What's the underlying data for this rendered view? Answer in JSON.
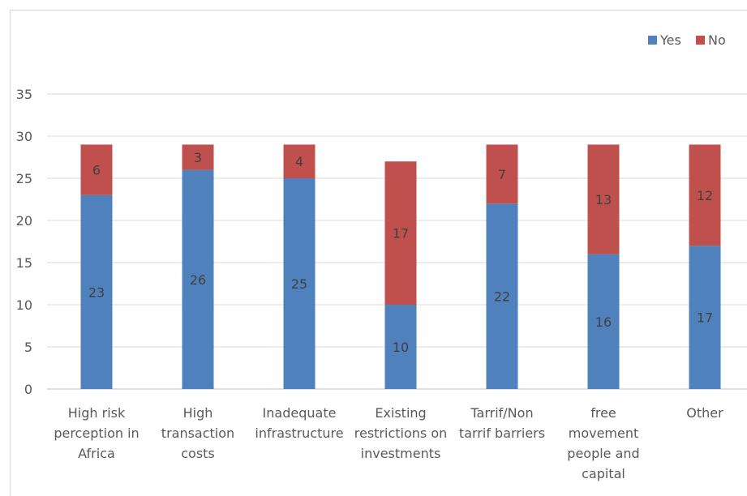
{
  "chart_data": {
    "type": "bar",
    "stacked": true,
    "categories": [
      [
        "High risk",
        "perception in",
        "Africa"
      ],
      [
        "High",
        "transaction",
        "costs"
      ],
      [
        "Inadequate",
        "infrastructure"
      ],
      [
        "Existing",
        "restrictions on",
        "investments"
      ],
      [
        "Tarrif/Non",
        "tarrif barriers"
      ],
      [
        "free",
        "movement",
        "people and",
        "capital"
      ],
      [
        "Other"
      ]
    ],
    "series": [
      {
        "name": "Yes",
        "color": "#4f81bd",
        "values": [
          23,
          26,
          25,
          10,
          22,
          16,
          17
        ]
      },
      {
        "name": "No",
        "color": "#c0504d",
        "values": [
          6,
          3,
          4,
          17,
          7,
          13,
          12
        ]
      }
    ],
    "yticks": [
      "0",
      "5",
      "10",
      "15",
      "20",
      "25",
      "30",
      "35"
    ],
    "ylim": [
      0,
      35
    ],
    "grid": true,
    "legend_position": "top-right"
  }
}
